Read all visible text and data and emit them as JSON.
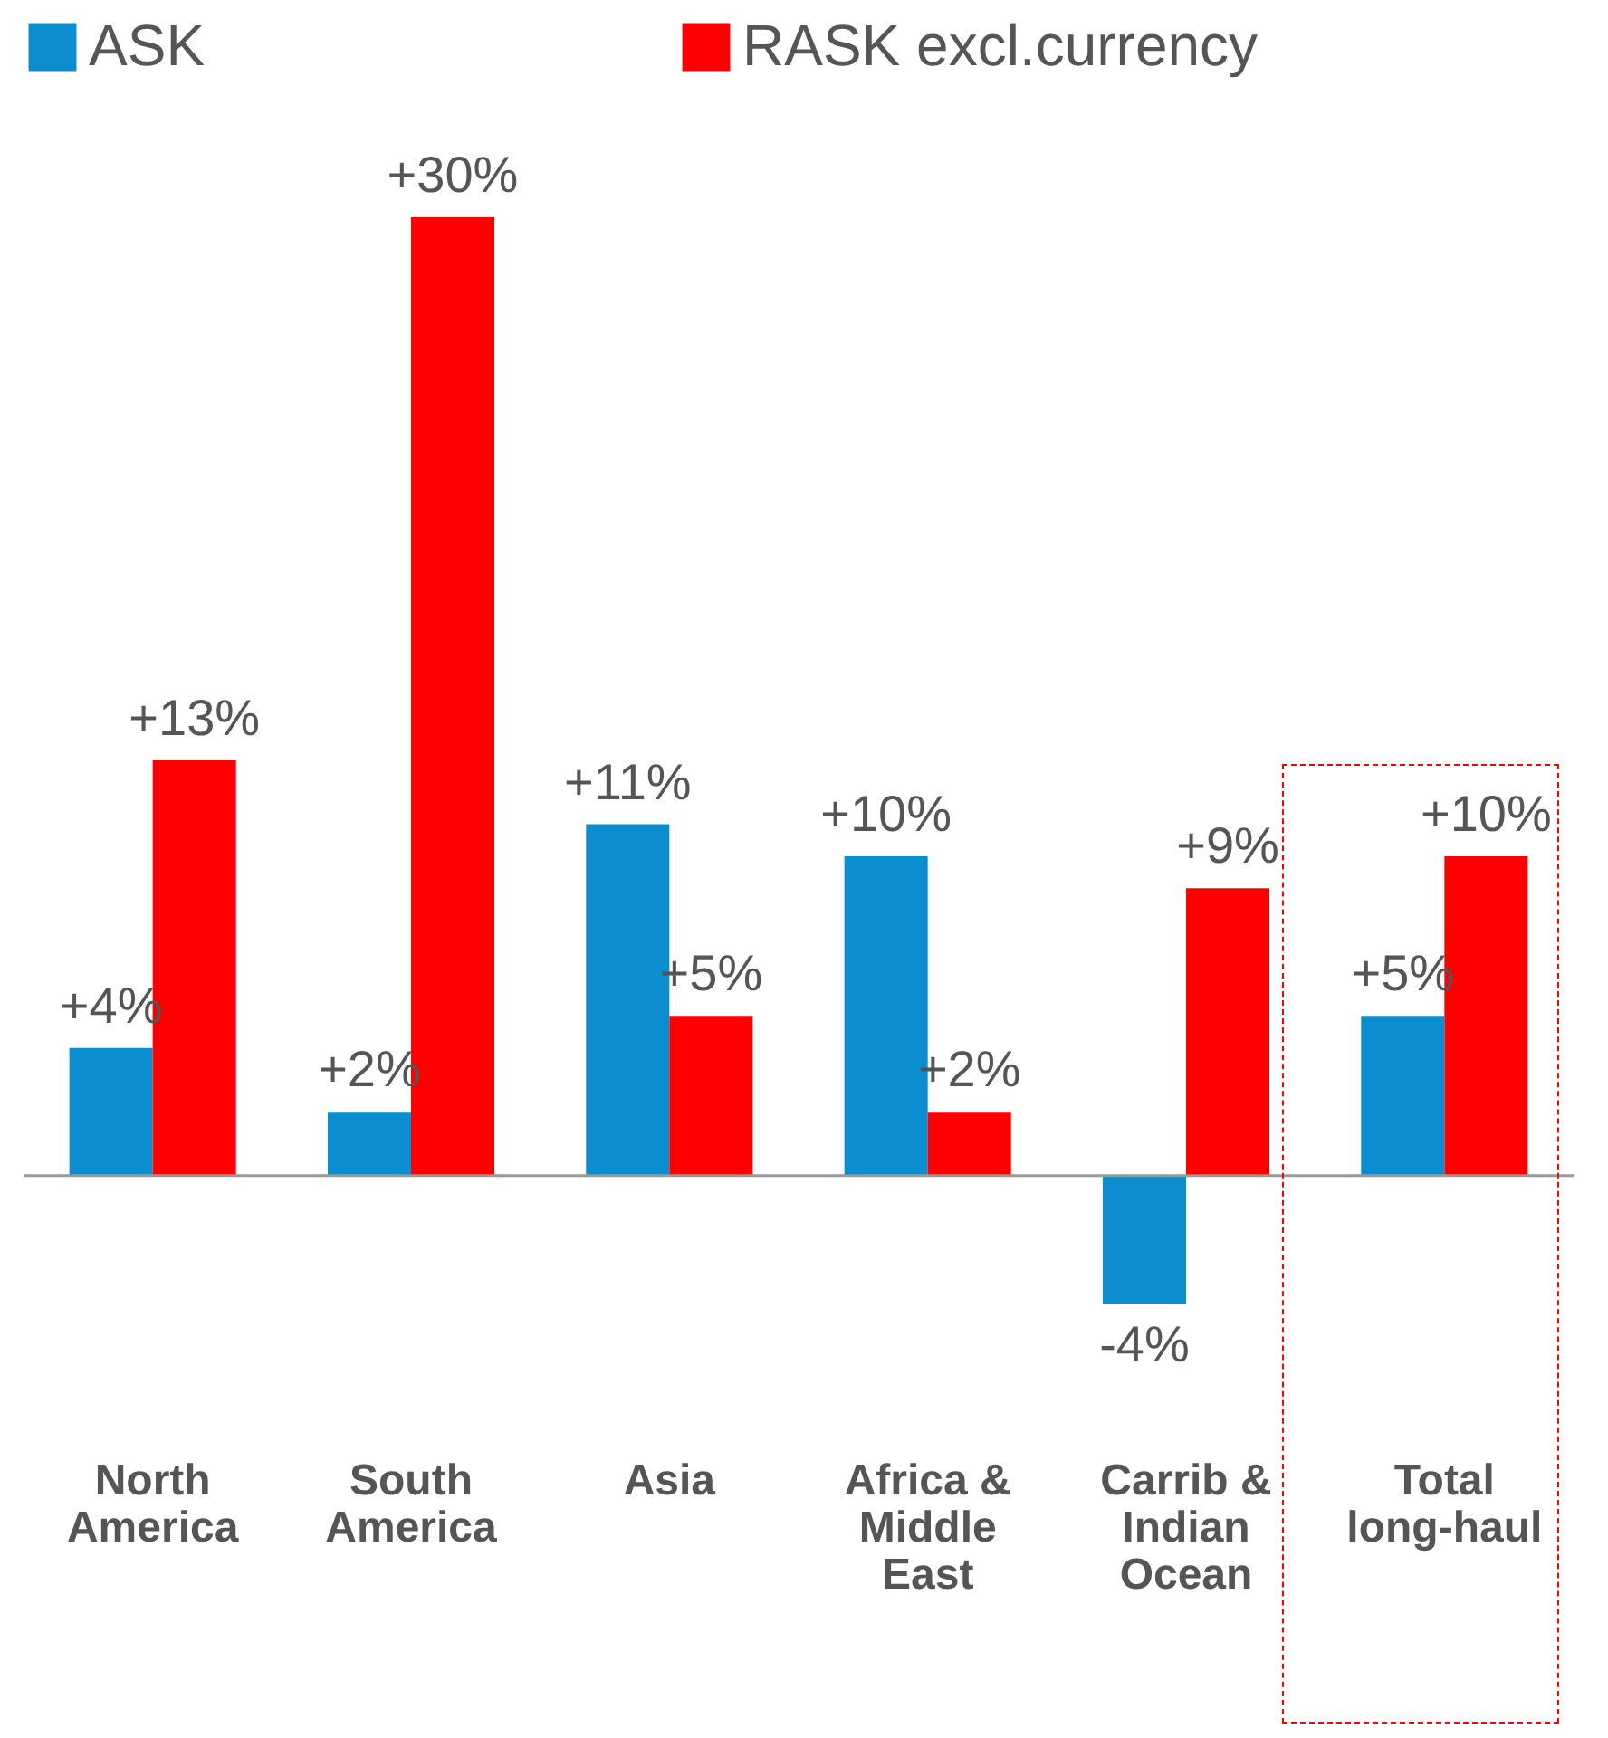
{
  "chart_data": {
    "type": "bar",
    "categories": [
      "North America",
      "South America",
      "Asia",
      "Africa & Middle East",
      "Carrib & Indian Ocean",
      "Total long-haul"
    ],
    "series": [
      {
        "name": "ASK",
        "color": "#0b8dd0",
        "values": [
          4,
          2,
          11,
          10,
          -4,
          5
        ],
        "value_labels": [
          "+4%",
          "+2%",
          "+11%",
          "+10%",
          "-4%",
          "+5%"
        ]
      },
      {
        "name": "RASK excl.currency",
        "color": "#ff0000",
        "values": [
          13,
          30,
          5,
          2,
          9,
          10
        ],
        "value_labels": [
          "+13%",
          "+30%",
          "+5%",
          "+2%",
          "+9%",
          "+10%"
        ]
      }
    ],
    "legend": "top"
  }
}
